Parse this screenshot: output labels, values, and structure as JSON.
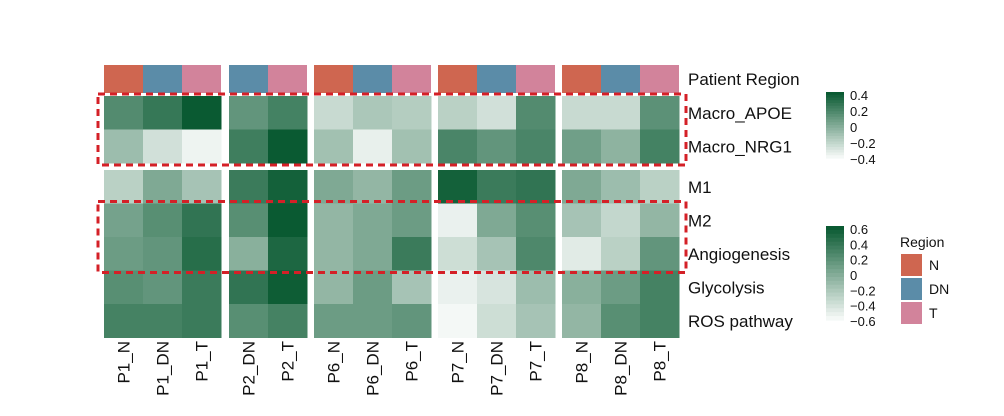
{
  "chart_data": {
    "type": "heatmap",
    "title": "",
    "annotation_label": "Patient Region",
    "columns": [
      "P1_N",
      "P1_DN",
      "P1_T",
      "P2_DN",
      "P2_T",
      "P6_N",
      "P6_DN",
      "P6_T",
      "P7_N",
      "P7_DN",
      "P7_T",
      "P8_N",
      "P8_DN",
      "P8_T"
    ],
    "column_groups": [
      {
        "patient": "P1",
        "columns": [
          "P1_N",
          "P1_DN",
          "P1_T"
        ]
      },
      {
        "patient": "P2",
        "columns": [
          "P2_DN",
          "P2_T"
        ]
      },
      {
        "patient": "P6",
        "columns": [
          "P6_N",
          "P6_DN",
          "P6_T"
        ]
      },
      {
        "patient": "P7",
        "columns": [
          "P7_N",
          "P7_DN",
          "P7_T"
        ]
      },
      {
        "patient": "P8",
        "columns": [
          "P8_N",
          "P8_DN",
          "P8_T"
        ]
      }
    ],
    "column_regions": [
      "N",
      "DN",
      "T",
      "DN",
      "T",
      "N",
      "DN",
      "T",
      "N",
      "DN",
      "T",
      "N",
      "DN",
      "T"
    ],
    "row_blocks": [
      {
        "rows": [
          "Macro_APOE",
          "Macro_NRG1"
        ],
        "scale": {
          "min": -0.4,
          "max": 0.4,
          "ticks": [
            "0.4",
            "0.2",
            "0",
            "−0.2",
            "−0.4"
          ]
        },
        "values": [
          [
            0.15,
            0.25,
            0.42,
            0.1,
            0.2,
            -0.25,
            -0.15,
            -0.18,
            -0.2,
            -0.28,
            0.15,
            -0.25,
            -0.25,
            0.12
          ],
          [
            -0.1,
            -0.28,
            -0.38,
            0.22,
            0.42,
            -0.12,
            -0.36,
            -0.12,
            0.18,
            0.1,
            0.18,
            0.05,
            -0.05,
            0.2
          ]
        ]
      },
      {
        "rows": [
          "M1",
          "M2",
          "Angiogenesis",
          "Glycolysis",
          "ROS pathway"
        ],
        "scale": {
          "min": -0.6,
          "max": 0.6,
          "ticks": [
            "0.6",
            "0.4",
            "0.2",
            "0",
            "−0.2",
            "−0.4",
            "−0.6"
          ]
        },
        "values": [
          [
            -0.3,
            0.0,
            -0.2,
            0.35,
            0.55,
            0.0,
            -0.1,
            0.1,
            0.55,
            0.35,
            0.4,
            0.0,
            -0.15,
            -0.3
          ],
          [
            0.05,
            0.2,
            0.4,
            0.2,
            0.68,
            -0.1,
            0.0,
            0.1,
            -0.55,
            0.0,
            0.2,
            -0.2,
            -0.35,
            -0.1
          ],
          [
            0.1,
            0.15,
            0.45,
            -0.05,
            0.5,
            -0.1,
            0.0,
            0.35,
            -0.4,
            -0.2,
            0.25,
            -0.5,
            -0.3,
            0.15
          ],
          [
            0.2,
            0.15,
            0.35,
            0.4,
            0.58,
            -0.1,
            0.1,
            -0.2,
            -0.55,
            -0.45,
            -0.15,
            -0.05,
            0.1,
            0.3
          ],
          [
            0.3,
            0.3,
            0.35,
            0.2,
            0.3,
            0.1,
            0.1,
            0.15,
            -0.75,
            -0.4,
            -0.2,
            -0.1,
            0.2,
            0.3
          ]
        ]
      }
    ],
    "legend": {
      "title": "Region",
      "items": [
        {
          "label": "N",
          "color": "#cf6650"
        },
        {
          "label": "DN",
          "color": "#5b8ca8"
        },
        {
          "label": "T",
          "color": "#d2839b"
        }
      ],
      "placement": "right"
    },
    "highlight_boxes": [
      {
        "block": 0,
        "rows": [
          "Macro_APOE",
          "Macro_NRG1"
        ]
      },
      {
        "block": 1,
        "rows": [
          "M2",
          "Angiogenesis"
        ]
      }
    ]
  },
  "colors": {
    "high": "#0a5a32",
    "low": "#f4f8f6",
    "highlight_border": "#d42027"
  }
}
